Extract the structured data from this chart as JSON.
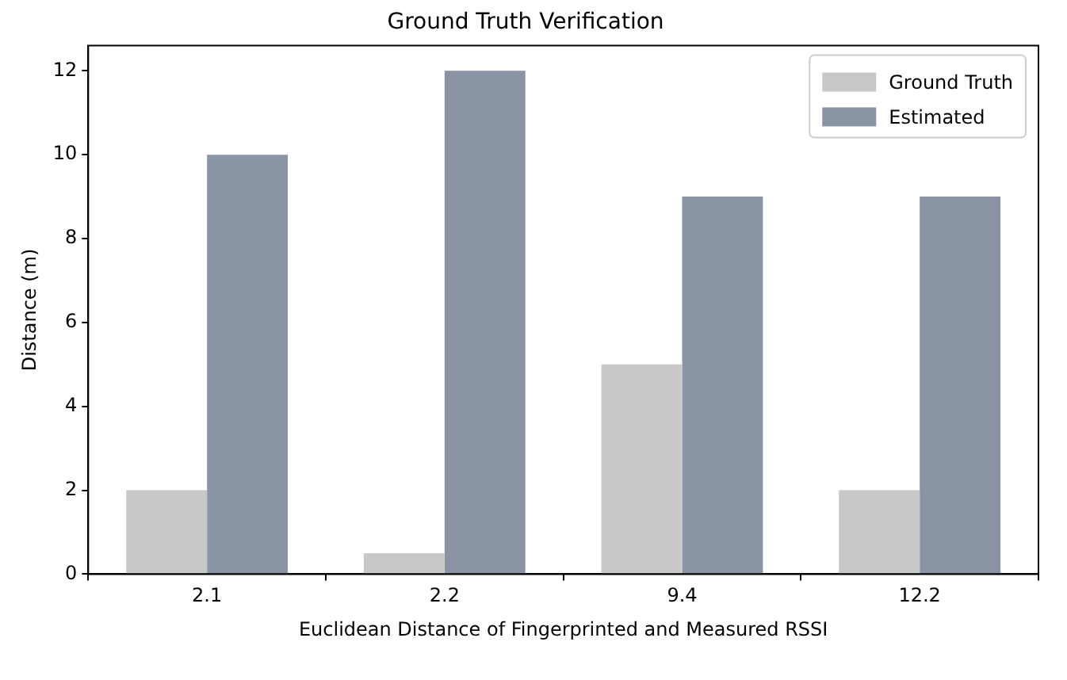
{
  "chart_data": {
    "type": "bar",
    "title": "Ground Truth Verification",
    "xlabel": "Euclidean Distance of Fingerprinted and Measured RSSI",
    "ylabel": "Distance (m)",
    "categories": [
      "2.1",
      "2.2",
      "9.4",
      "12.2"
    ],
    "series": [
      {
        "name": "Ground Truth",
        "color": "#c8c8c8",
        "values": [
          2,
          0.5,
          5,
          2
        ]
      },
      {
        "name": "Estimated",
        "color": "#8a94a4",
        "values": [
          10,
          12,
          9,
          9
        ]
      }
    ],
    "ylim": [
      0,
      12.6
    ],
    "yticks": [
      0,
      2,
      4,
      6,
      8,
      10,
      12
    ],
    "grid": false,
    "legend": "top right"
  }
}
